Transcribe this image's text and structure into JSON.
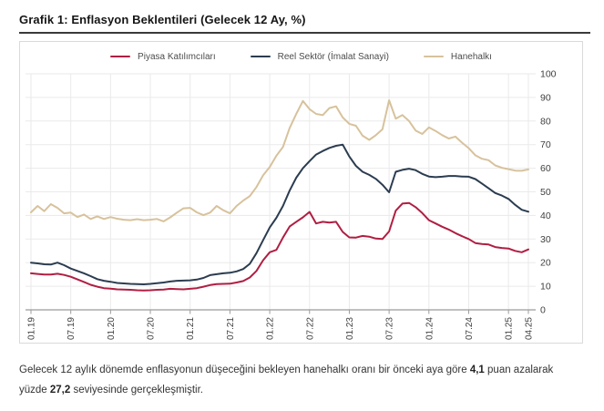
{
  "header": {
    "title": "Grafik 1: Enflasyon Beklentileri (Gelecek 12 Ay, %)"
  },
  "chart_data": {
    "type": "line",
    "title": "Grafik 1: Enflasyon Beklentileri (Gelecek 12 Ay, %)",
    "x_unit": "month",
    "ylim": [
      0,
      100
    ],
    "y_ticks": [
      0,
      10,
      20,
      30,
      40,
      50,
      60,
      70,
      80,
      90,
      100
    ],
    "y_axis_position": "right",
    "grid": true,
    "legend_position": "top",
    "x_tick_labels": [
      "01.19",
      "07.19",
      "01.20",
      "07.20",
      "01.21",
      "07.21",
      "01.22",
      "07.22",
      "01.23",
      "07.23",
      "01.24",
      "07.24",
      "01.25",
      "04.25"
    ],
    "x_tick_indices": [
      0,
      6,
      12,
      18,
      24,
      30,
      36,
      42,
      48,
      54,
      60,
      66,
      72,
      75
    ],
    "months": [
      "01.19",
      "02.19",
      "03.19",
      "04.19",
      "05.19",
      "06.19",
      "07.19",
      "08.19",
      "09.19",
      "10.19",
      "11.19",
      "12.19",
      "01.20",
      "02.20",
      "03.20",
      "04.20",
      "05.20",
      "06.20",
      "07.20",
      "08.20",
      "09.20",
      "10.20",
      "11.20",
      "12.20",
      "01.21",
      "02.21",
      "03.21",
      "04.21",
      "05.21",
      "06.21",
      "07.21",
      "08.21",
      "09.21",
      "10.21",
      "11.21",
      "12.21",
      "01.22",
      "02.22",
      "03.22",
      "04.22",
      "05.22",
      "06.22",
      "07.22",
      "08.22",
      "09.22",
      "10.22",
      "11.22",
      "12.22",
      "01.23",
      "02.23",
      "03.23",
      "04.23",
      "05.23",
      "06.23",
      "07.23",
      "08.23",
      "09.23",
      "10.23",
      "11.23",
      "12.23",
      "01.24",
      "02.24",
      "03.24",
      "04.24",
      "05.24",
      "06.24",
      "07.24",
      "08.24",
      "09.24",
      "10.24",
      "11.24",
      "12.24",
      "01.25",
      "02.25",
      "03.25",
      "04.25"
    ],
    "series": [
      {
        "name": "Piyasa Katılımcıları",
        "color": "#b01e42",
        "values": [
          15.5,
          15.2,
          15.0,
          15.0,
          15.3,
          14.8,
          14.0,
          12.9,
          11.8,
          10.6,
          9.8,
          9.2,
          9.0,
          8.7,
          8.6,
          8.5,
          8.3,
          8.2,
          8.3,
          8.5,
          8.6,
          8.9,
          8.8,
          8.7,
          8.9,
          9.2,
          9.8,
          10.5,
          10.9,
          11.0,
          11.1,
          11.6,
          12.2,
          13.7,
          16.5,
          21.0,
          24.4,
          25.4,
          30.6,
          35.3,
          37.3,
          39.2,
          41.5,
          36.6,
          37.3,
          37.0,
          37.3,
          33.0,
          30.7,
          30.6,
          31.3,
          31.0,
          30.2,
          30.0,
          33.2,
          42.0,
          45.0,
          45.3,
          43.5,
          41.0,
          38.0,
          36.6,
          35.2,
          34.0,
          32.5,
          31.2,
          30.0,
          28.3,
          27.9,
          27.7,
          26.6,
          26.2,
          26.0,
          25.0,
          24.4,
          25.6
        ]
      },
      {
        "name": "Reel Sektör (İmalat Sanayi)",
        "color": "#2b3c50",
        "values": [
          20.0,
          19.7,
          19.3,
          19.2,
          20.0,
          18.9,
          17.5,
          16.5,
          15.5,
          14.3,
          13.0,
          12.3,
          11.9,
          11.4,
          11.2,
          11.0,
          10.9,
          10.8,
          11.0,
          11.3,
          11.6,
          12.0,
          12.3,
          12.4,
          12.5,
          12.8,
          13.5,
          14.7,
          15.1,
          15.5,
          15.7,
          16.3,
          17.3,
          19.5,
          24.0,
          29.5,
          34.9,
          39.0,
          44.0,
          50.5,
          56.0,
          60.0,
          63.0,
          65.8,
          67.3,
          68.6,
          69.5,
          70.0,
          65.0,
          61.0,
          58.5,
          57.2,
          55.5,
          53.0,
          49.8,
          58.5,
          59.3,
          59.8,
          59.2,
          57.6,
          56.5,
          56.2,
          56.4,
          56.7,
          56.7,
          56.5,
          56.4,
          55.4,
          53.5,
          51.5,
          49.5,
          48.4,
          47.0,
          44.5,
          42.4,
          41.6
        ]
      },
      {
        "name": "Hanehalkı",
        "color": "#d7c29c",
        "values": [
          41.3,
          44.0,
          41.8,
          44.8,
          43.2,
          40.9,
          41.2,
          39.3,
          40.4,
          38.5,
          39.6,
          38.5,
          39.3,
          38.6,
          38.2,
          38.0,
          38.4,
          38.0,
          38.2,
          38.5,
          37.5,
          39.2,
          41.2,
          43.0,
          43.2,
          41.3,
          40.1,
          41.2,
          44.0,
          42.2,
          40.9,
          44.0,
          46.3,
          48.2,
          52.0,
          57.0,
          60.5,
          65.3,
          69.0,
          77.0,
          83.0,
          88.5,
          85.0,
          83.0,
          82.5,
          85.5,
          86.2,
          81.5,
          78.8,
          78.0,
          73.8,
          72.0,
          74.0,
          76.5,
          88.8,
          81.0,
          82.5,
          80.0,
          76.0,
          74.5,
          77.3,
          75.8,
          74.0,
          72.6,
          73.4,
          70.8,
          68.5,
          65.5,
          64.0,
          63.4,
          61.2,
          60.2,
          59.6,
          59.0,
          58.9,
          59.5
        ]
      }
    ],
    "style": {
      "grid_color": "#eaeaea",
      "axis_color": "#9b9b9b",
      "tick_label_color": "#3f3f3f"
    }
  },
  "footnote": {
    "segments": [
      {
        "text": "Gelecek 12 aylık dönemde enflasyonun düşeceğini bekleyen hanehalkı oranı bir önceki aya göre ",
        "bold": false
      },
      {
        "text": "4,1",
        "bold": true
      },
      {
        "text": " puan azalarak yüzde ",
        "bold": false
      },
      {
        "text": "27,2",
        "bold": true
      },
      {
        "text": " seviyesinde gerçekleşmiştir.",
        "bold": false
      }
    ]
  }
}
